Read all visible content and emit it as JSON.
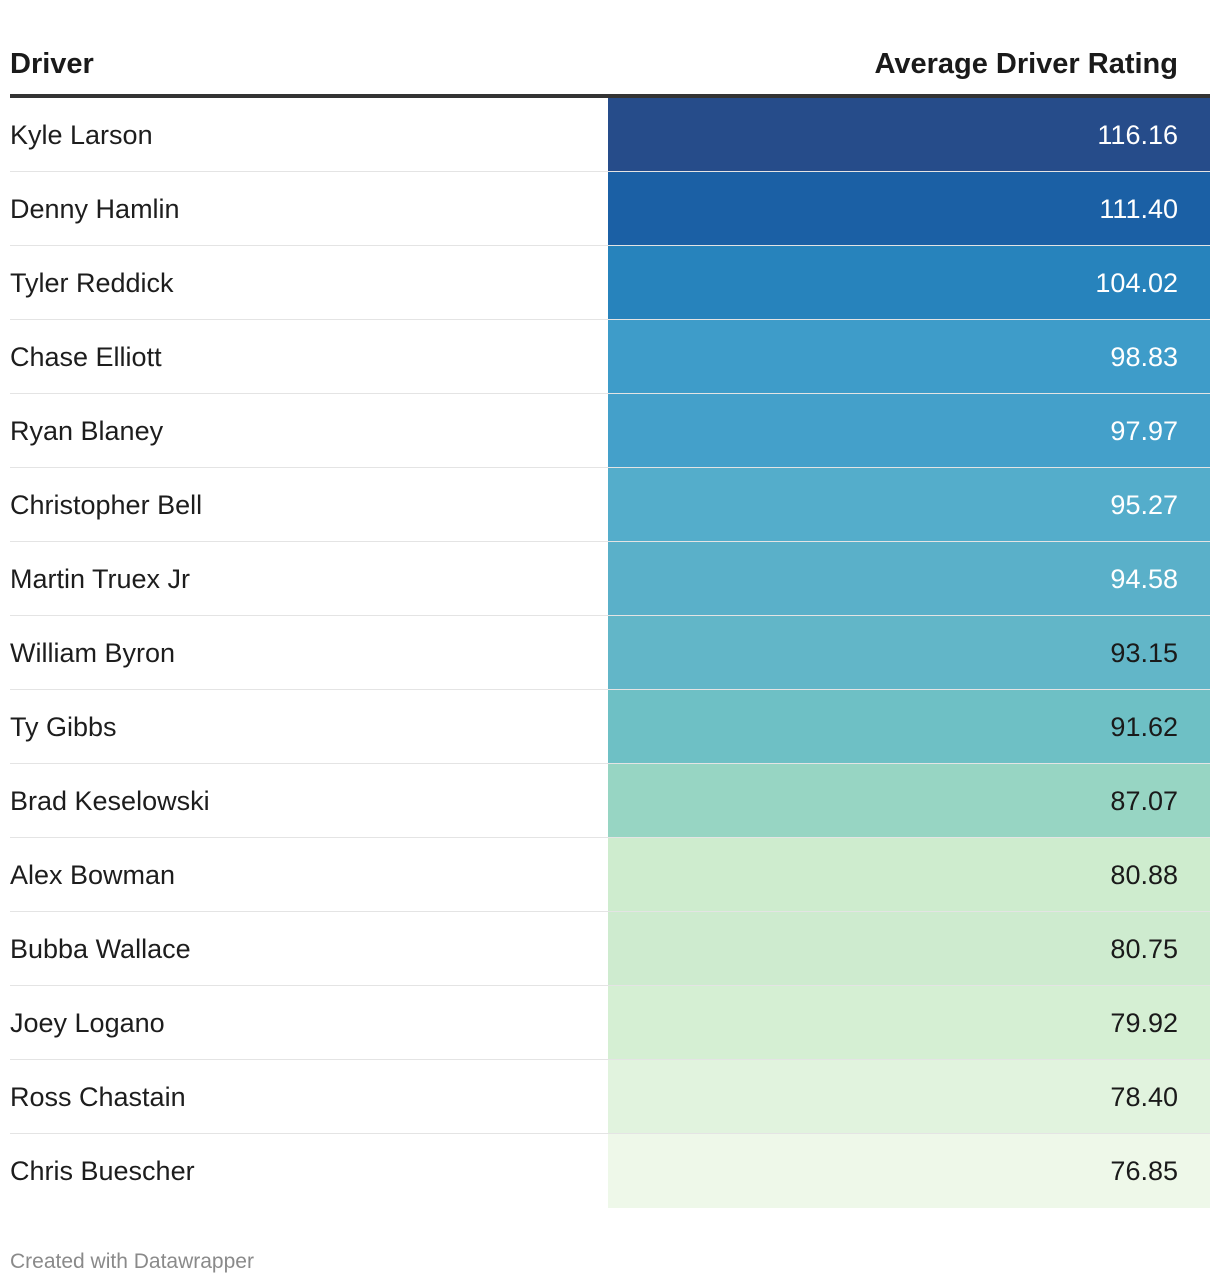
{
  "chart_data": {
    "type": "table",
    "columns": [
      "Driver",
      "Average Driver Rating"
    ],
    "rows": [
      {
        "driver": "Kyle Larson",
        "rating": "116.16",
        "value": 116.16,
        "color": "#264c8a",
        "text_color": "#ffffff"
      },
      {
        "driver": "Denny Hamlin",
        "rating": "111.40",
        "value": 111.4,
        "color": "#1b60a5",
        "text_color": "#ffffff"
      },
      {
        "driver": "Tyler Reddick",
        "rating": "104.02",
        "value": 104.02,
        "color": "#2783bc",
        "text_color": "#ffffff"
      },
      {
        "driver": "Chase Elliott",
        "rating": "98.83",
        "value": 98.83,
        "color": "#3e9cc9",
        "text_color": "#ffffff"
      },
      {
        "driver": "Ryan Blaney",
        "rating": "97.97",
        "value": 97.97,
        "color": "#44a0ca",
        "text_color": "#ffffff"
      },
      {
        "driver": "Christopher Bell",
        "rating": "95.27",
        "value": 95.27,
        "color": "#54adcb",
        "text_color": "#ffffff"
      },
      {
        "driver": "Martin Truex Jr",
        "rating": "94.58",
        "value": 94.58,
        "color": "#5ab0c9",
        "text_color": "#ffffff"
      },
      {
        "driver": "William Byron",
        "rating": "93.15",
        "value": 93.15,
        "color": "#62b6c8",
        "text_color": "#1a1a1a"
      },
      {
        "driver": "Ty Gibbs",
        "rating": "91.62",
        "value": 91.62,
        "color": "#6ec0c5",
        "text_color": "#1a1a1a"
      },
      {
        "driver": "Brad Keselowski",
        "rating": "87.07",
        "value": 87.07,
        "color": "#97d5c3",
        "text_color": "#1a1a1a"
      },
      {
        "driver": "Alex Bowman",
        "rating": "80.88",
        "value": 80.88,
        "color": "#ceecce",
        "text_color": "#1a1a1a"
      },
      {
        "driver": "Bubba Wallace",
        "rating": "80.75",
        "value": 80.75,
        "color": "#ceebcf",
        "text_color": "#1a1a1a"
      },
      {
        "driver": "Joey Logano",
        "rating": "79.92",
        "value": 79.92,
        "color": "#d5efd3",
        "text_color": "#1a1a1a"
      },
      {
        "driver": "Ross Chastain",
        "rating": "78.40",
        "value": 78.4,
        "color": "#e1f3de",
        "text_color": "#1a1a1a"
      },
      {
        "driver": "Chris Buescher",
        "rating": "76.85",
        "value": 76.85,
        "color": "#eef8e9",
        "text_color": "#1a1a1a"
      }
    ]
  },
  "footer": {
    "credit": "Created with Datawrapper"
  }
}
